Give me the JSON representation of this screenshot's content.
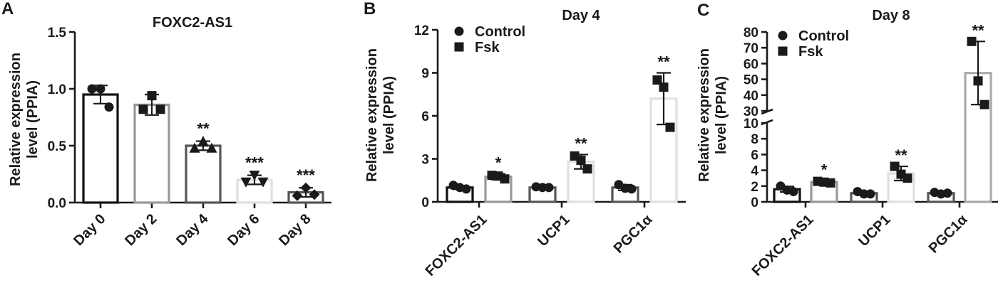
{
  "chart_data": [
    {
      "panel": "A",
      "type": "bar",
      "title": "FOXC2-AS1",
      "xlabel": "",
      "ylabel": [
        "Relative expression",
        "level (PPIA)"
      ],
      "yticks": [
        "0.0",
        "0.5",
        "1.0",
        "1.5"
      ],
      "ylim": [
        0,
        1.5
      ],
      "categories": [
        "Day 0",
        "Day 2",
        "Day 4",
        "Day 6",
        "Day 8"
      ],
      "bar_colors": [
        "#111111",
        "#999999",
        "#555555",
        "#e0e0e0",
        "#555555"
      ],
      "values": [
        0.95,
        0.86,
        0.5,
        0.2,
        0.09
      ],
      "errors": [
        0.08,
        0.09,
        0.04,
        0.04,
        0.04
      ],
      "points": [
        [
          1.0,
          1.0,
          0.84
        ],
        [
          0.94,
          0.82,
          0.82
        ],
        [
          0.54,
          0.48,
          0.48
        ],
        [
          0.24,
          0.18,
          0.18
        ],
        [
          0.13,
          0.06,
          0.07
        ]
      ],
      "markers": [
        "circle",
        "square",
        "triangle-up",
        "triangle-down",
        "diamond"
      ],
      "significance": [
        "",
        "",
        "**",
        "***",
        "***"
      ]
    },
    {
      "panel": "B",
      "type": "bar",
      "title": "Day 4",
      "xlabel": "",
      "ylabel": [
        "Relative expression",
        "level (PPIA)"
      ],
      "yticks": [
        "0",
        "3",
        "6",
        "9",
        "12"
      ],
      "ylim": [
        0,
        12
      ],
      "categories": [
        "FOXC2-AS1",
        "UCP1",
        "PGC1α"
      ],
      "legend": [
        "Control",
        "Fsk"
      ],
      "legend_position": "top-left",
      "series": [
        {
          "name": "Control",
          "marker": "circle",
          "values": [
            1.0,
            1.0,
            1.0
          ],
          "errors": [
            0.12,
            0.08,
            0.2
          ],
          "points": [
            [
              1.15,
              1.0,
              0.9
            ],
            [
              1.05,
              1.0,
              1.0
            ],
            [
              1.2,
              0.95,
              0.9
            ]
          ],
          "bar_colors": [
            "#111111",
            "#555555",
            "#555555"
          ]
        },
        {
          "name": "Fsk",
          "marker": "square",
          "values": [
            1.75,
            2.8,
            7.2
          ],
          "errors": [
            0.2,
            0.5,
            1.8
          ],
          "points": [
            [
              1.85,
              1.8,
              1.6
            ],
            [
              3.2,
              2.9,
              2.3
            ],
            [
              8.5,
              8.0,
              5.2
            ]
          ],
          "bar_colors": [
            "#999999",
            "#e0e0e0",
            "#e0e0e0"
          ]
        }
      ],
      "significance": [
        "*",
        "**",
        "**"
      ]
    },
    {
      "panel": "C",
      "type": "bar",
      "title": "Day 8",
      "xlabel": "",
      "ylabel": [
        "Relative expression",
        "level (PPIA)"
      ],
      "yticks_lower": [
        "0",
        "2",
        "4",
        "6",
        "8",
        "10"
      ],
      "yticks_upper": [
        "30",
        "40",
        "50",
        "60",
        "70",
        "80"
      ],
      "ylim_lower": [
        0,
        10
      ],
      "ylim_upper": [
        30,
        80
      ],
      "axis_break": true,
      "categories": [
        "FOXC2-AS1",
        "UCP1",
        "PGC1α"
      ],
      "legend": [
        "Control",
        "Fsk"
      ],
      "legend_position": "top-left",
      "series": [
        {
          "name": "Control",
          "marker": "circle",
          "values": [
            1.6,
            1.1,
            1.1
          ],
          "errors": [
            0.35,
            0.25,
            0.15
          ],
          "points": [
            [
              2.0,
              1.5,
              1.3
            ],
            [
              1.3,
              1.0,
              1.0
            ],
            [
              1.2,
              1.0,
              1.1
            ]
          ],
          "bar_colors": [
            "#111111",
            "#555555",
            "#555555"
          ]
        },
        {
          "name": "Fsk",
          "marker": "square",
          "values": [
            2.5,
            3.6,
            54
          ],
          "errors": [
            0.15,
            0.9,
            20
          ],
          "points": [
            [
              2.6,
              2.5,
              2.4
            ],
            [
              4.5,
              3.5,
              3.0
            ],
            [
              74,
              49,
              34
            ]
          ],
          "bar_colors": [
            "#999999",
            "#e0e0e0",
            "#aaaaaa"
          ]
        }
      ],
      "significance": [
        "*",
        "**",
        "**"
      ]
    }
  ]
}
